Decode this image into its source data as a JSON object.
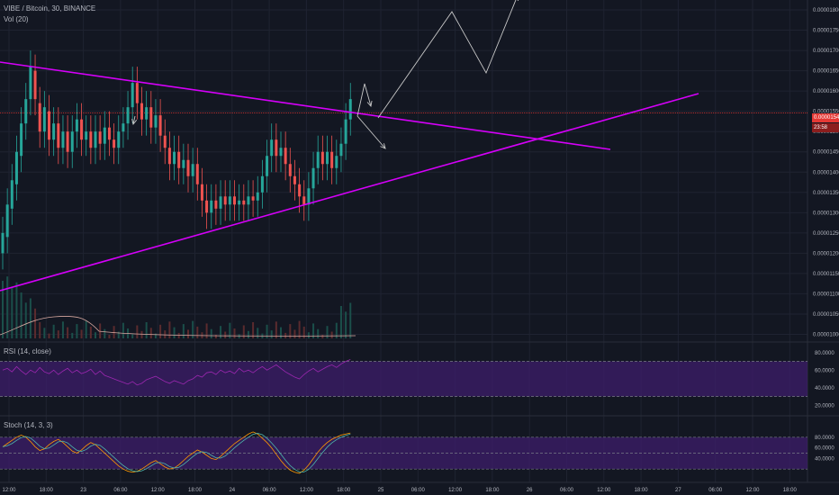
{
  "header": {
    "title": "VIBE / Bitcoin, 30, BINANCE",
    "volume_label": "Vol (20)"
  },
  "price_tag": {
    "value": "0.00001546",
    "countdown": "23:58"
  },
  "colors": {
    "background": "#131722",
    "up": "#26a69a",
    "down": "#ef5350",
    "trendline": "#d500f9",
    "annotation_arrows": "#c8c8c8",
    "rsi_line": "#9c27b0",
    "stoch_k": "#ff9800",
    "stoch_d": "#4db6ac",
    "band_fill": "#3d1d6b",
    "price_line": "#e53935"
  },
  "rsi": {
    "label": "RSI (14, close)",
    "ticks": [
      "80.0000",
      "60.0000",
      "40.0000",
      "20.0000"
    ]
  },
  "stoch": {
    "label": "Stoch (14, 3, 3)",
    "ticks": [
      "80.0000",
      "60.0000",
      "40.0000"
    ]
  },
  "chart_data": {
    "type": "candlestick",
    "symbol": "VIBE / Bitcoin",
    "interval": "30",
    "exchange": "BINANCE",
    "y_ticks": [
      "0.00001800",
      "0.00001750",
      "0.00001700",
      "0.00001650",
      "0.00001600",
      "0.00001550",
      "0.00001500",
      "0.00001450",
      "0.00001400",
      "0.00001350",
      "0.00001300",
      "0.00001250",
      "0.00001200",
      "0.00001150",
      "0.00001100",
      "0.00001050",
      "0.00001000"
    ],
    "ylim": [
      9.9e-06,
      1.82e-05
    ],
    "x_ticks": [
      "12:00",
      "18:00",
      "23",
      "06:00",
      "12:00",
      "18:00",
      "24",
      "06:00",
      "12:00",
      "18:00",
      "25",
      "06:00",
      "12:00",
      "18:00",
      "26",
      "06:00",
      "12:00",
      "18:00",
      "27",
      "06:00",
      "12:00",
      "18:00"
    ],
    "candles": [
      [
        1.2e-05,
        1.25e-05
      ],
      [
        1.24e-05,
        1.32e-05
      ],
      [
        1.31e-05,
        1.38e-05
      ],
      [
        1.37e-05,
        1.45e-05
      ],
      [
        1.44e-05,
        1.52e-05
      ],
      [
        1.52e-05,
        1.58e-05
      ],
      [
        1.58e-05,
        1.66e-05
      ],
      [
        1.65e-05,
        1.58e-05
      ],
      [
        1.57e-05,
        1.5e-05
      ],
      [
        1.5e-05,
        1.56e-05
      ],
      [
        1.55e-05,
        1.48e-05
      ],
      [
        1.48e-05,
        1.52e-05
      ],
      [
        1.52e-05,
        1.46e-05
      ],
      [
        1.46e-05,
        1.5e-05
      ],
      [
        1.5e-05,
        1.45e-05
      ],
      [
        1.45e-05,
        1.5e-05
      ],
      [
        1.5e-05,
        1.53e-05
      ],
      [
        1.53e-05,
        1.48e-05
      ],
      [
        1.48e-05,
        1.5e-05
      ],
      [
        1.5e-05,
        1.46e-05
      ],
      [
        1.46e-05,
        1.5e-05
      ],
      [
        1.5e-05,
        1.47e-05
      ],
      [
        1.47e-05,
        1.51e-05
      ],
      [
        1.51e-05,
        1.48e-05
      ],
      [
        1.48e-05,
        1.46e-05
      ],
      [
        1.46e-05,
        1.5e-05
      ],
      [
        1.5e-05,
        1.52e-05
      ],
      [
        1.52e-05,
        1.56e-05
      ],
      [
        1.56e-05,
        1.62e-05
      ],
      [
        1.62e-05,
        1.57e-05
      ],
      [
        1.57e-05,
        1.53e-05
      ],
      [
        1.53e-05,
        1.56e-05
      ],
      [
        1.56e-05,
        1.51e-05
      ],
      [
        1.51e-05,
        1.54e-05
      ],
      [
        1.54e-05,
        1.49e-05
      ],
      [
        1.49e-05,
        1.46e-05
      ],
      [
        1.46e-05,
        1.42e-05
      ],
      [
        1.42e-05,
        1.45e-05
      ],
      [
        1.45e-05,
        1.41e-05
      ],
      [
        1.41e-05,
        1.43e-05
      ],
      [
        1.43e-05,
        1.39e-05
      ],
      [
        1.39e-05,
        1.42e-05
      ],
      [
        1.42e-05,
        1.37e-05
      ],
      [
        1.37e-05,
        1.33e-05
      ],
      [
        1.33e-05,
        1.3e-05
      ],
      [
        1.3e-05,
        1.33e-05
      ],
      [
        1.33e-05,
        1.31e-05
      ],
      [
        1.31e-05,
        1.34e-05
      ],
      [
        1.34e-05,
        1.32e-05
      ],
      [
        1.32e-05,
        1.34e-05
      ],
      [
        1.34e-05,
        1.32e-05
      ],
      [
        1.32e-05,
        1.33e-05
      ],
      [
        1.33e-05,
        1.32e-05
      ],
      [
        1.32e-05,
        1.34e-05
      ],
      [
        1.34e-05,
        1.33e-05
      ],
      [
        1.33e-05,
        1.35e-05
      ],
      [
        1.35e-05,
        1.39e-05
      ],
      [
        1.39e-05,
        1.44e-05
      ],
      [
        1.44e-05,
        1.48e-05
      ],
      [
        1.48e-05,
        1.44e-05
      ],
      [
        1.44e-05,
        1.46e-05
      ],
      [
        1.46e-05,
        1.42e-05
      ],
      [
        1.42e-05,
        1.39e-05
      ],
      [
        1.39e-05,
        1.37e-05
      ],
      [
        1.37e-05,
        1.34e-05
      ],
      [
        1.34e-05,
        1.32e-05
      ],
      [
        1.32e-05,
        1.36e-05
      ],
      [
        1.36e-05,
        1.41e-05
      ],
      [
        1.41e-05,
        1.45e-05
      ],
      [
        1.45e-05,
        1.42e-05
      ],
      [
        1.42e-05,
        1.45e-05
      ],
      [
        1.45e-05,
        1.41e-05
      ],
      [
        1.41e-05,
        1.44e-05
      ],
      [
        1.44e-05,
        1.47e-05
      ],
      [
        1.47e-05,
        1.53e-05
      ],
      [
        1.53e-05,
        1.58e-05
      ]
    ],
    "series": [
      {
        "name": "Vol (20)"
      },
      {
        "name": "RSI (14, close)"
      },
      {
        "name": "Stoch (14, 3, 3)"
      }
    ],
    "annotations": [
      {
        "type": "trendline",
        "points": [
          [
            0,
            1.7e-05
          ],
          [
            128,
            1.47e-05
          ]
        ]
      },
      {
        "type": "trendline",
        "points": [
          [
            0,
            1.11e-05
          ],
          [
            146,
            1.6e-05
          ]
        ]
      },
      {
        "type": "projection-arrows"
      }
    ],
    "grid": true
  }
}
